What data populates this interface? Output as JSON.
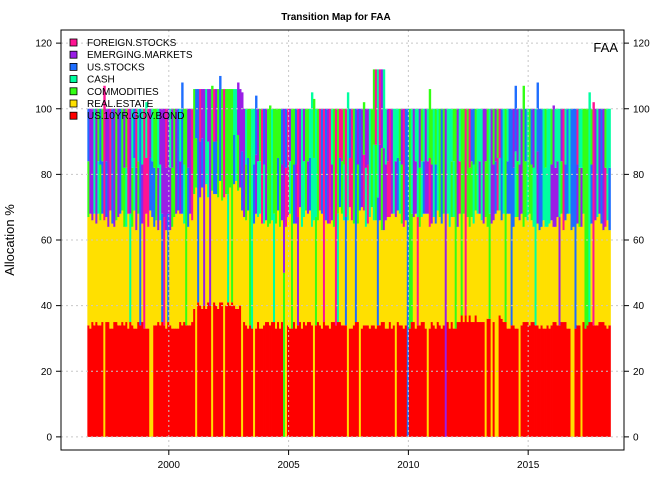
{
  "chart_data": {
    "type": "area",
    "title": "Transition Map for FAA",
    "xlabel": "",
    "ylabel": "Allocation %",
    "corner_label": "FAA",
    "xlim": [
      1995.5,
      2019.0
    ],
    "ylim": [
      -4,
      124
    ],
    "x_ticks": [
      2000,
      2005,
      2010,
      2015
    ],
    "y_ticks": [
      0,
      20,
      40,
      60,
      80,
      100,
      120
    ],
    "grid": true,
    "legend_position": "top-left",
    "x_start": 1996.6,
    "x_end": 2018.4,
    "series": [
      {
        "name": "FOREIGN.STOCKS",
        "color": "#FF1493"
      },
      {
        "name": "EMERGING.MARKETS",
        "color": "#9A1EE6"
      },
      {
        "name": "US.STOCKS",
        "color": "#1E6EFF"
      },
      {
        "name": "CASH",
        "color": "#00FFA0"
      },
      {
        "name": "COMMODITIES",
        "color": "#33FF14"
      },
      {
        "name": "REAL.ESTATE",
        "color": "#FFE000"
      },
      {
        "name": "US.10YR.GOV.BOND",
        "color": "#FF0000"
      }
    ],
    "stack_order": [
      "US.10YR.GOV.BOND",
      "REAL.ESTATE",
      "COMMODITIES",
      "CASH",
      "US.STOCKS",
      "EMERGING.MARKETS",
      "FOREIGN.STOCKS"
    ],
    "band_levels": [
      {
        "year_from": 1996.6,
        "bond": 34,
        "real_estate": 66,
        "total": 100
      },
      {
        "year_from": 2001.0,
        "bond": 40,
        "real_estate": 75,
        "total": 106
      },
      {
        "year_from": 2003.0,
        "bond": 34,
        "real_estate": 67,
        "total": 100
      },
      {
        "year_from": 2008.5,
        "bond": 34,
        "real_estate": 66,
        "total": 112
      },
      {
        "year_from": 2009.0,
        "bond": 34,
        "real_estate": 66,
        "total": 100
      },
      {
        "year_from": 2012.0,
        "bond": 36,
        "real_estate": 66,
        "total": 100
      },
      {
        "year_from": 2014.0,
        "bond": 34,
        "real_estate": 66,
        "total": 100
      }
    ]
  }
}
